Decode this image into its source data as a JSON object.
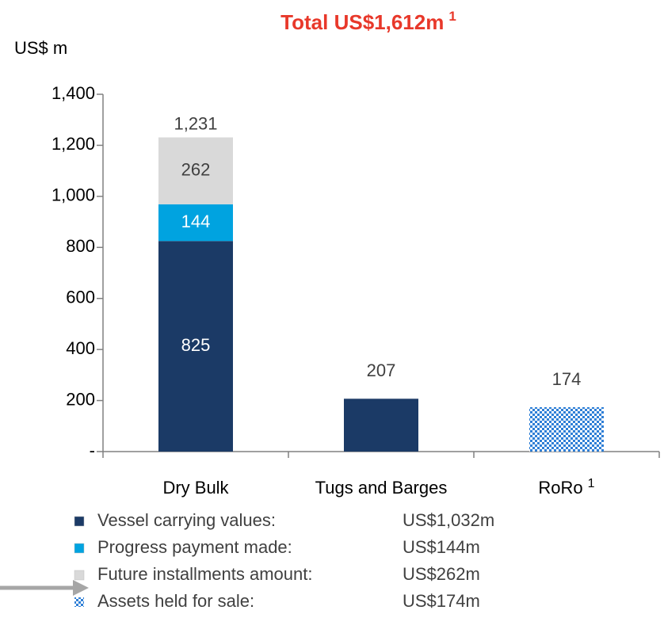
{
  "chart_data": {
    "type": "stacked_bar",
    "title": "Total US$1,612m",
    "title_note": "1",
    "y_label": "US$ m",
    "categories": [
      "Dry Bulk",
      "Tugs and Barges",
      "RoRo"
    ],
    "category_notes": [
      null,
      null,
      "1"
    ],
    "series": [
      {
        "name": "Vessel carrying values:",
        "color": "#1b3a66",
        "values": [
          825,
          207,
          null
        ],
        "amount": {
          "value": 1032,
          "label": "US$1,032m"
        },
        "label_color": "#ffffff"
      },
      {
        "name": "Progress payment made:",
        "color": "#00a3e0",
        "values": [
          144,
          null,
          null
        ],
        "amount": {
          "value": 144,
          "label": "US$144m"
        },
        "label_color": "#ffffff"
      },
      {
        "name": "Future installments amount:",
        "color": "#d9d9d9",
        "values": [
          262,
          null,
          null
        ],
        "amount": {
          "value": 262,
          "label": "US$262m"
        },
        "label_color": "#404040"
      },
      {
        "name": "Assets held for sale:",
        "color": "#2f7fd6",
        "pattern": "checker",
        "values": [
          null,
          null,
          174
        ],
        "amount": {
          "value": 174,
          "label": "US$174m"
        },
        "label_color": "#404040"
      }
    ],
    "total_label": {
      "value": 1231,
      "label": "1,231"
    },
    "ylim": [
      0,
      1400
    ],
    "yticks": [
      {
        "value": 0,
        "label": "-"
      },
      200,
      400,
      600,
      800,
      {
        "value": 1000,
        "label": "1,000"
      },
      {
        "value": 1200,
        "label": "1,200"
      },
      {
        "value": 1400,
        "label": "1,400"
      }
    ]
  }
}
